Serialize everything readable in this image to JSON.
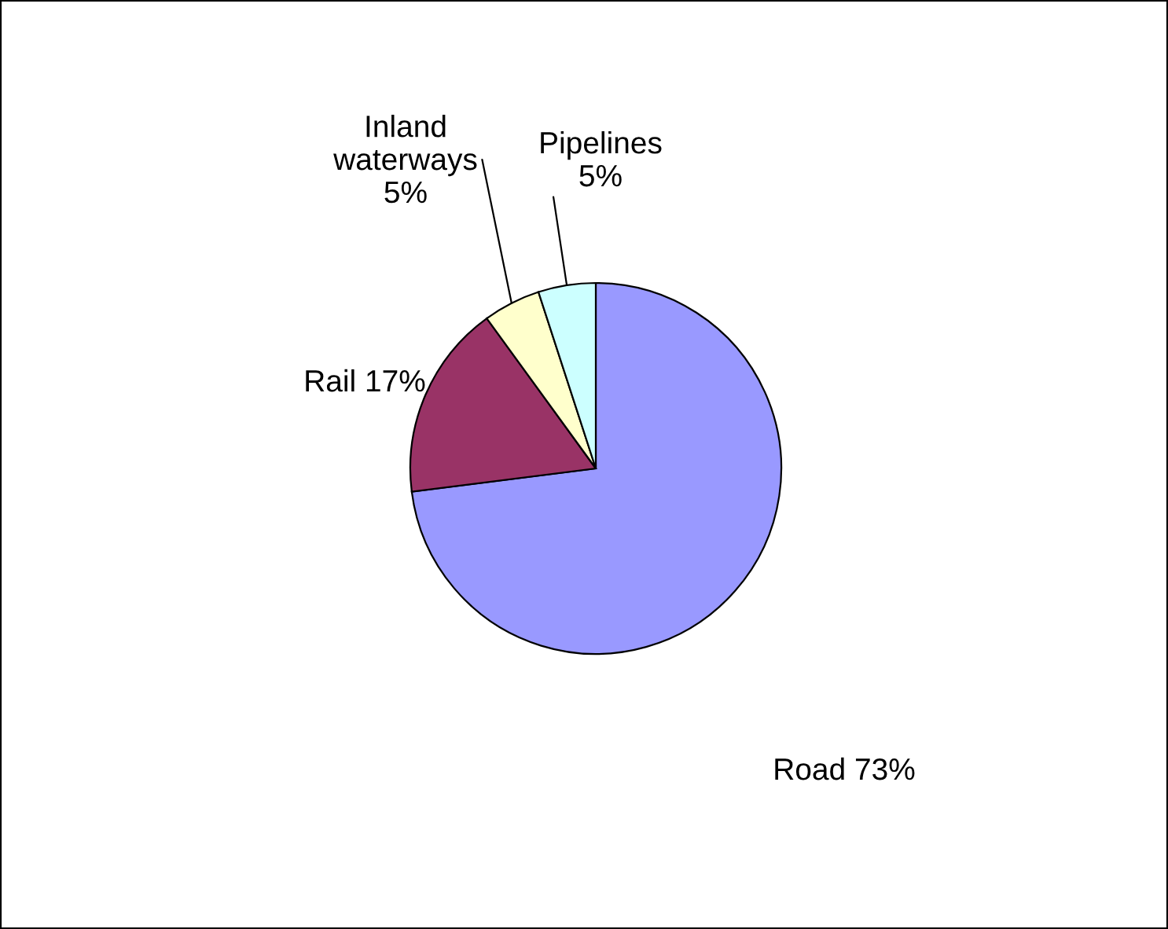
{
  "chart_data": {
    "type": "pie",
    "categories": [
      "Road",
      "Rail",
      "Inland waterways",
      "Pipelines"
    ],
    "values": [
      73,
      17,
      5,
      5
    ],
    "value_labels": [
      "73%",
      "17%",
      "5%",
      "5%"
    ],
    "colors": [
      "#9999ff",
      "#993366",
      "#ffffcc",
      "#ccffff"
    ],
    "legend": false
  }
}
